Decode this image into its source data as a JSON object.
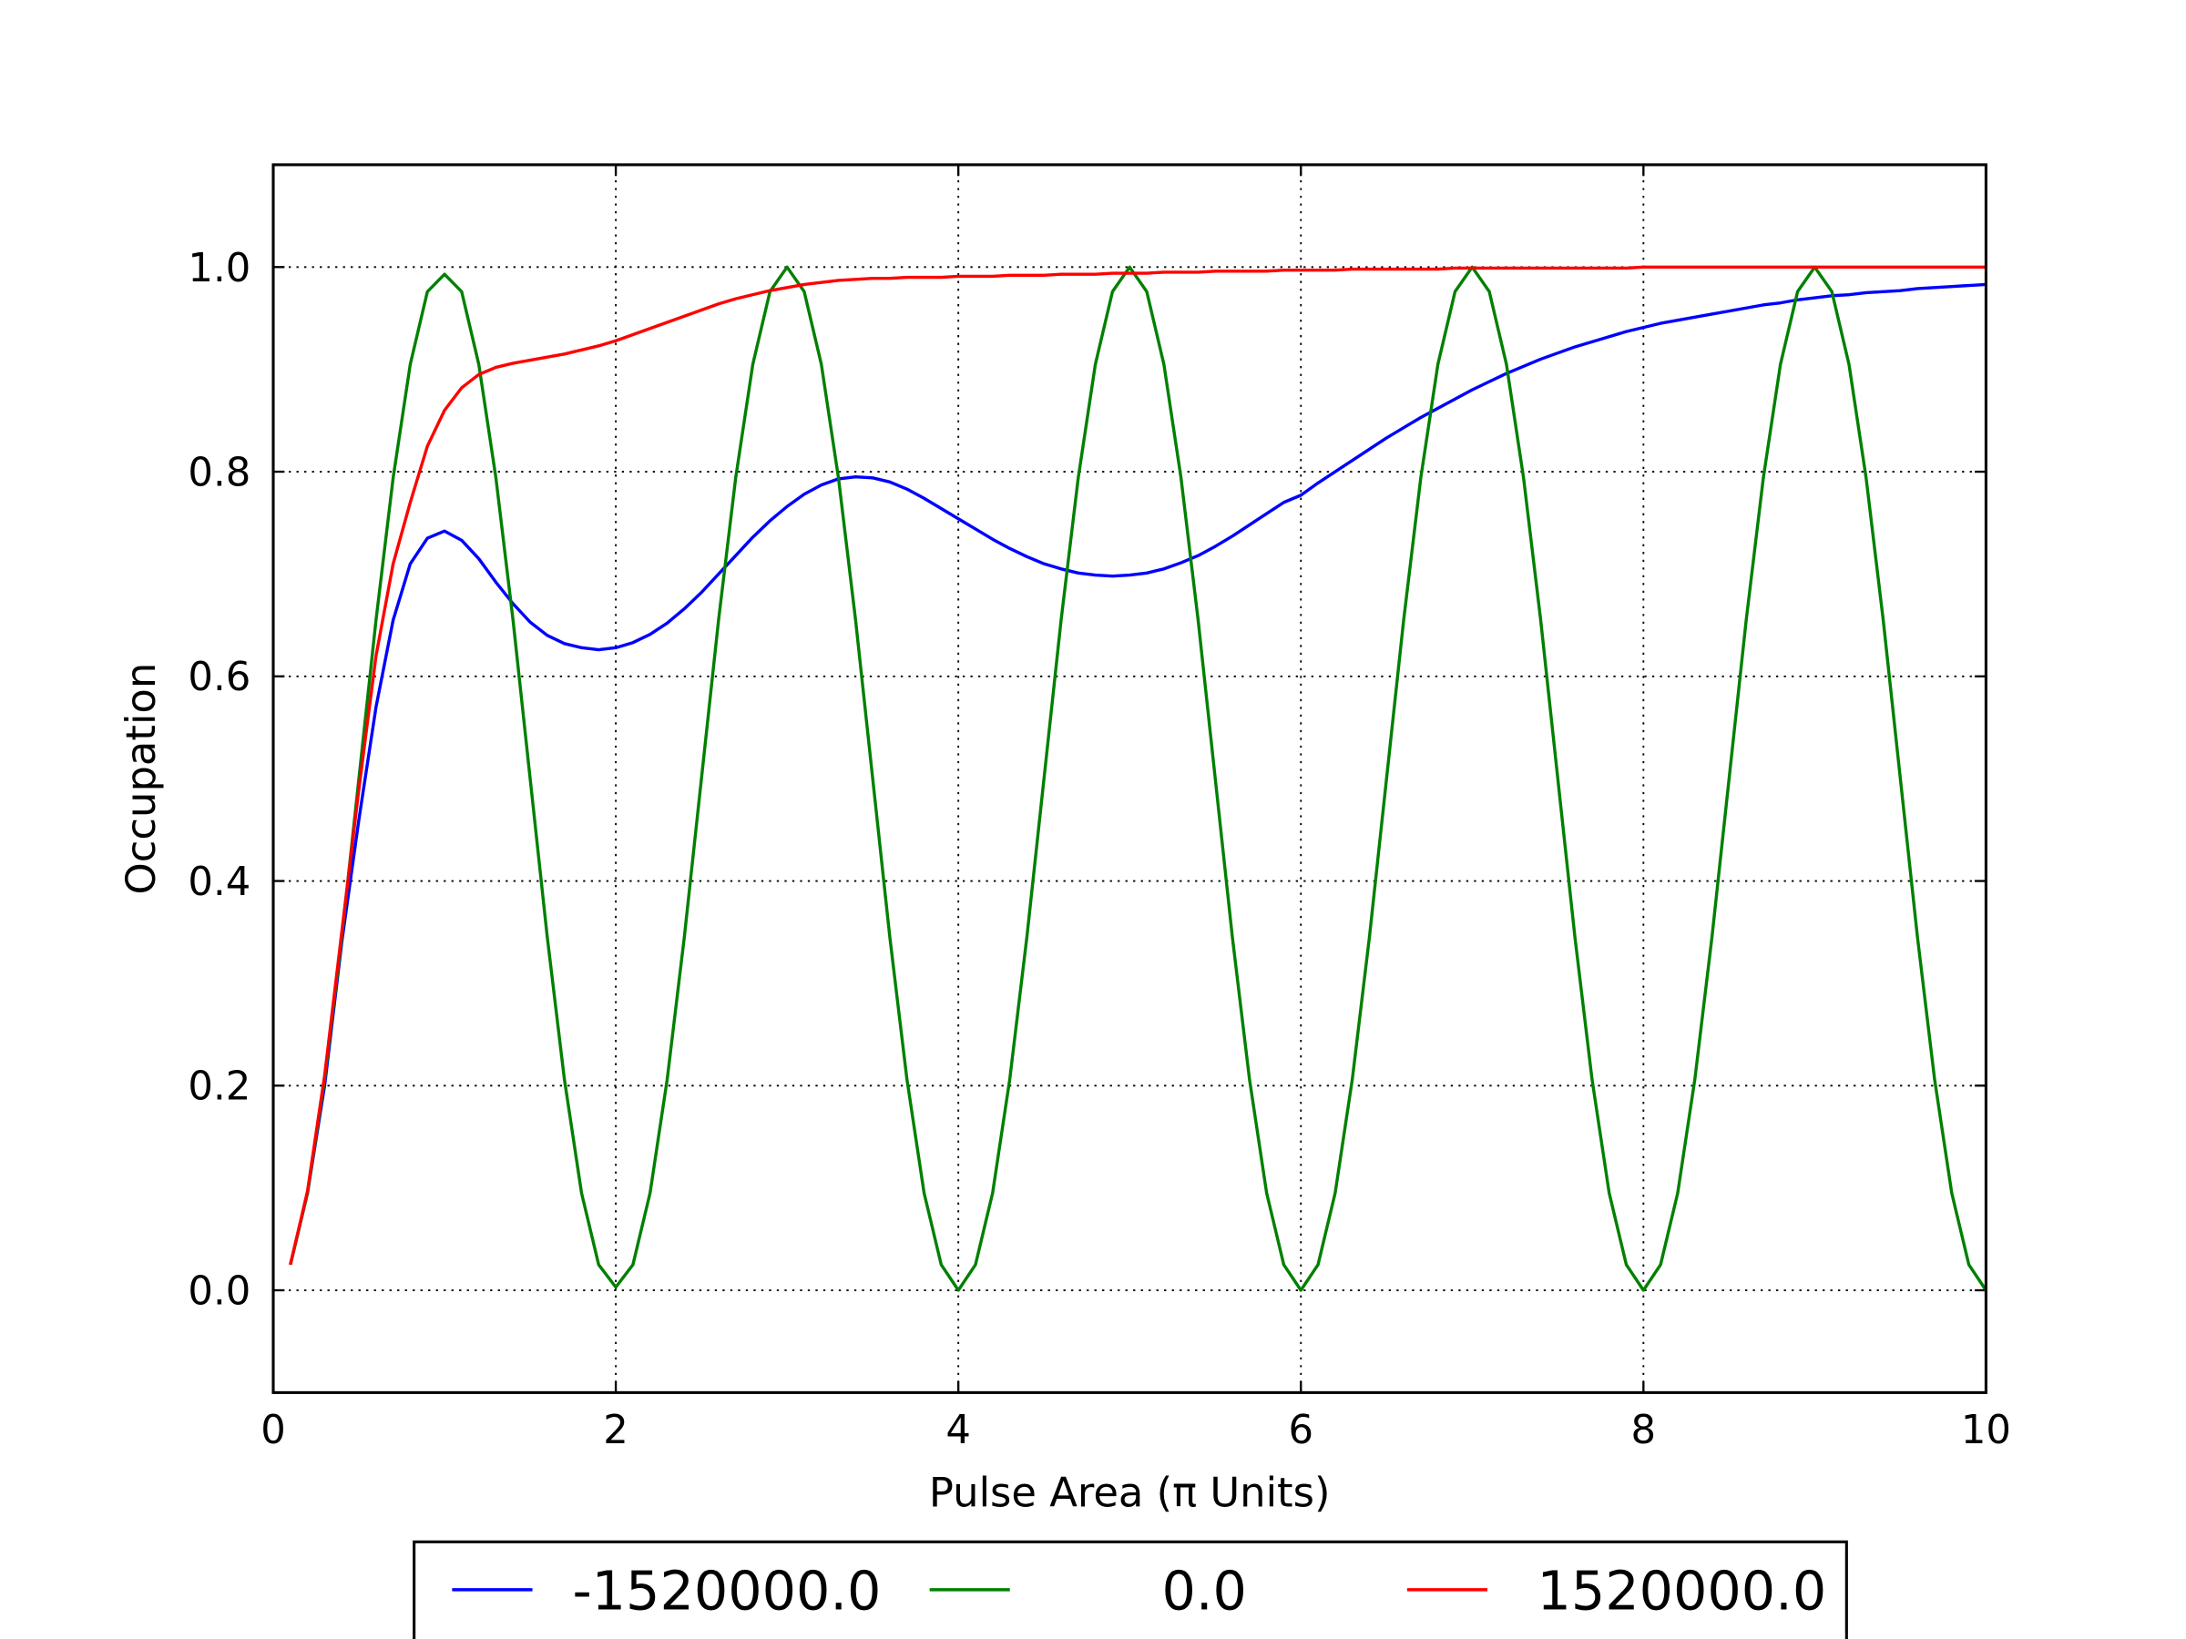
{
  "chart_data": {
    "type": "line",
    "xlabel": "Pulse Area (π Units)",
    "ylabel": "Occupation",
    "xlim": [
      0,
      10
    ],
    "ylim": [
      -0.1,
      1.1
    ],
    "xticks": [
      0,
      2,
      4,
      6,
      8,
      10
    ],
    "yticks": [
      {
        "value": 0,
        "label": "0.0"
      },
      {
        "value": 0.2,
        "label": "0.2"
      },
      {
        "value": 0.4,
        "label": "0.4"
      },
      {
        "value": 0.6,
        "label": "0.6"
      },
      {
        "value": 0.8,
        "label": "0.8"
      },
      {
        "value": 1,
        "label": "1.0"
      }
    ],
    "grid": true,
    "legend": "lower center",
    "x": [
      0.1,
      0.2,
      0.3,
      0.4,
      0.5,
      0.6,
      0.7,
      0.8,
      0.9,
      1.0,
      1.1,
      1.2,
      1.3,
      1.4,
      1.5,
      1.6,
      1.7,
      1.8,
      1.9,
      2.0,
      2.1,
      2.2,
      2.3,
      2.4,
      2.5,
      2.6,
      2.7,
      2.8,
      2.9,
      3.0,
      3.1,
      3.2,
      3.3,
      3.4,
      3.5,
      3.6,
      3.7,
      3.8,
      3.9,
      4.0,
      4.1,
      4.2,
      4.3,
      4.4,
      4.5,
      4.6,
      4.7,
      4.8,
      4.9,
      5.0,
      5.1,
      5.2,
      5.3,
      5.4,
      5.5,
      5.6,
      5.7,
      5.8,
      5.9,
      6.0,
      6.1,
      6.2,
      6.3,
      6.4,
      6.5,
      6.6,
      6.7,
      6.8,
      6.9,
      7.0,
      7.1,
      7.2,
      7.3,
      7.4,
      7.5,
      7.6,
      7.7,
      7.8,
      7.9,
      8.0,
      8.1,
      8.2,
      8.3,
      8.4,
      8.5,
      8.6,
      8.7,
      8.8,
      8.9,
      9.0,
      9.1,
      9.2,
      9.3,
      9.4,
      9.5,
      9.6,
      9.7,
      9.8,
      9.9,
      10.0
    ],
    "series": [
      {
        "name": "-1520000.0",
        "color": "#0000ff",
        "values": [
          0.025,
          0.095,
          0.2,
          0.34,
          0.46,
          0.57,
          0.655,
          0.71,
          0.735,
          0.742,
          0.733,
          0.715,
          0.692,
          0.671,
          0.653,
          0.64,
          0.632,
          0.628,
          0.626,
          0.628,
          0.633,
          0.641,
          0.652,
          0.666,
          0.682,
          0.7,
          0.718,
          0.736,
          0.752,
          0.766,
          0.778,
          0.787,
          0.793,
          0.795,
          0.794,
          0.79,
          0.783,
          0.774,
          0.764,
          0.754,
          0.744,
          0.734,
          0.725,
          0.717,
          0.71,
          0.705,
          0.701,
          0.699,
          0.698,
          0.699,
          0.701,
          0.705,
          0.711,
          0.718,
          0.727,
          0.737,
          0.748,
          0.759,
          0.77,
          0.777,
          0.789,
          0.8,
          0.811,
          0.822,
          0.833,
          0.843,
          0.853,
          0.862,
          0.871,
          0.88,
          0.888,
          0.896,
          0.903,
          0.91,
          0.916,
          0.922,
          0.927,
          0.932,
          0.937,
          0.941,
          0.945,
          0.948,
          0.951,
          0.954,
          0.957,
          0.96,
          0.963,
          0.965,
          0.968,
          0.97,
          0.972,
          0.973,
          0.975,
          0.976,
          0.977,
          0.979,
          0.98,
          0.981,
          0.982,
          0.983
        ]
      },
      {
        "name": "0.0",
        "color": "#008000",
        "values": [
          0.025,
          0.095,
          0.206,
          0.345,
          0.5,
          0.655,
          0.794,
          0.905,
          0.976,
          0.993,
          0.976,
          0.905,
          0.794,
          0.655,
          0.5,
          0.345,
          0.206,
          0.095,
          0.025,
          0.003,
          0.025,
          0.095,
          0.206,
          0.345,
          0.5,
          0.655,
          0.794,
          0.905,
          0.976,
          1.0,
          0.976,
          0.905,
          0.794,
          0.655,
          0.5,
          0.345,
          0.206,
          0.095,
          0.025,
          0.0,
          0.025,
          0.095,
          0.206,
          0.345,
          0.5,
          0.655,
          0.794,
          0.905,
          0.976,
          1.0,
          0.976,
          0.905,
          0.794,
          0.655,
          0.5,
          0.345,
          0.206,
          0.095,
          0.025,
          0.0,
          0.025,
          0.095,
          0.206,
          0.345,
          0.5,
          0.655,
          0.794,
          0.905,
          0.976,
          1.0,
          0.976,
          0.905,
          0.794,
          0.655,
          0.5,
          0.345,
          0.206,
          0.095,
          0.025,
          0.0,
          0.025,
          0.095,
          0.206,
          0.345,
          0.5,
          0.655,
          0.794,
          0.905,
          0.976,
          1.0,
          0.976,
          0.905,
          0.794,
          0.655,
          0.5,
          0.345,
          0.206,
          0.095,
          0.025,
          0.0
        ]
      },
      {
        "name": "1520000.0",
        "color": "#ff0000",
        "values": [
          0.025,
          0.097,
          0.21,
          0.35,
          0.49,
          0.62,
          0.71,
          0.77,
          0.825,
          0.86,
          0.882,
          0.895,
          0.902,
          0.906,
          0.909,
          0.912,
          0.915,
          0.919,
          0.923,
          0.928,
          0.934,
          0.94,
          0.946,
          0.952,
          0.958,
          0.964,
          0.969,
          0.973,
          0.977,
          0.98,
          0.983,
          0.985,
          0.987,
          0.988,
          0.989,
          0.989,
          0.99,
          0.99,
          0.99,
          0.991,
          0.991,
          0.991,
          0.992,
          0.992,
          0.992,
          0.993,
          0.993,
          0.993,
          0.994,
          0.994,
          0.994,
          0.995,
          0.995,
          0.995,
          0.996,
          0.996,
          0.996,
          0.996,
          0.997,
          0.997,
          0.997,
          0.997,
          0.998,
          0.998,
          0.998,
          0.998,
          0.998,
          0.998,
          0.999,
          0.999,
          0.999,
          0.999,
          0.999,
          0.999,
          0.999,
          0.999,
          0.999,
          0.999,
          0.999,
          1.0,
          1.0,
          1.0,
          1.0,
          1.0,
          1.0,
          1.0,
          1.0,
          1.0,
          1.0,
          1.0,
          1.0,
          1.0,
          1.0,
          1.0,
          1.0,
          1.0,
          1.0,
          1.0,
          1.0,
          1.0
        ]
      }
    ]
  }
}
